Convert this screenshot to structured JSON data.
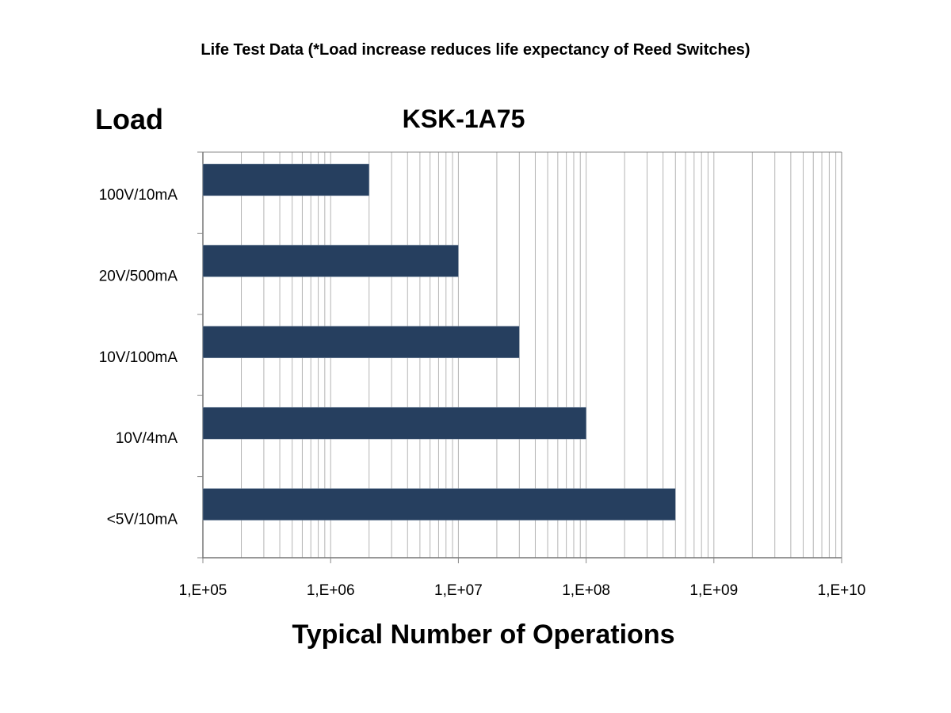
{
  "chart_data": {
    "type": "bar",
    "orientation": "horizontal",
    "title": "Life Test Data (*Load increase reduces life expectancy of Reed Switches)",
    "subtitle": "KSK-1A75",
    "ylabel": "Load",
    "xlabel": "Typical Number of Operations",
    "categories": [
      "100V/10mA",
      "20V/500mA",
      "10V/100mA",
      "10V/4mA",
      "<5V/10mA"
    ],
    "values": [
      2000000,
      10000000,
      30000000,
      100000000,
      500000000
    ],
    "x_scale": "log",
    "xlim": [
      100000,
      10000000000
    ],
    "x_tick_labels": [
      "1,E+05",
      "1,E+06",
      "1,E+07",
      "1,E+08",
      "1,E+09",
      "1,E+10"
    ],
    "grid": "vertical minor and major",
    "legend": "none",
    "bar_color": "#263f5f",
    "grid_color": "#b4b4b4"
  }
}
